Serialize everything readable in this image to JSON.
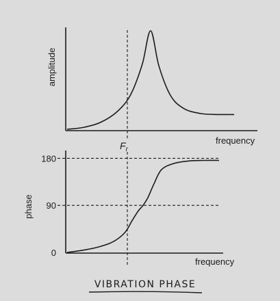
{
  "caption": "VIBRATION PHASE",
  "chart_data": [
    {
      "type": "line",
      "title": "",
      "xlabel": "frequency",
      "ylabel": "amplitude",
      "marker_label": "Fr",
      "marker_label_main": "F",
      "marker_label_sub": "r",
      "x_range": [
        0,
        10
      ],
      "y_range": [
        0,
        10
      ],
      "grid": false,
      "series": [
        {
          "x": [
            0,
            1,
            2,
            3,
            3.8,
            4.5,
            5,
            5.5,
            6.2,
            7,
            8,
            9,
            10
          ],
          "y": [
            0,
            0.2,
            0.7,
            1.8,
            3.5,
            6.6,
            10,
            6.4,
            3.4,
            2.1,
            1.6,
            1.5,
            1.5
          ]
        }
      ]
    },
    {
      "type": "line",
      "title": "",
      "xlabel": "frequency",
      "ylabel": "phase",
      "y_ticks": [
        {
          "value": 0,
          "label": "0"
        },
        {
          "value": 90,
          "label": "90"
        },
        {
          "value": 180,
          "label": "180"
        }
      ],
      "x_range": [
        0,
        10
      ],
      "y_range": [
        0,
        195
      ],
      "grid": false,
      "series": [
        {
          "x": [
            0,
            1,
            2,
            3,
            3.8,
            4.3,
            4.7,
            5,
            5.3,
            5.7,
            6.2,
            7,
            8,
            9,
            10
          ],
          "y": [
            0,
            4,
            10,
            20,
            38,
            62,
            80,
            90,
            104,
            130,
            158,
            170,
            175,
            176,
            176
          ]
        }
      ]
    }
  ]
}
